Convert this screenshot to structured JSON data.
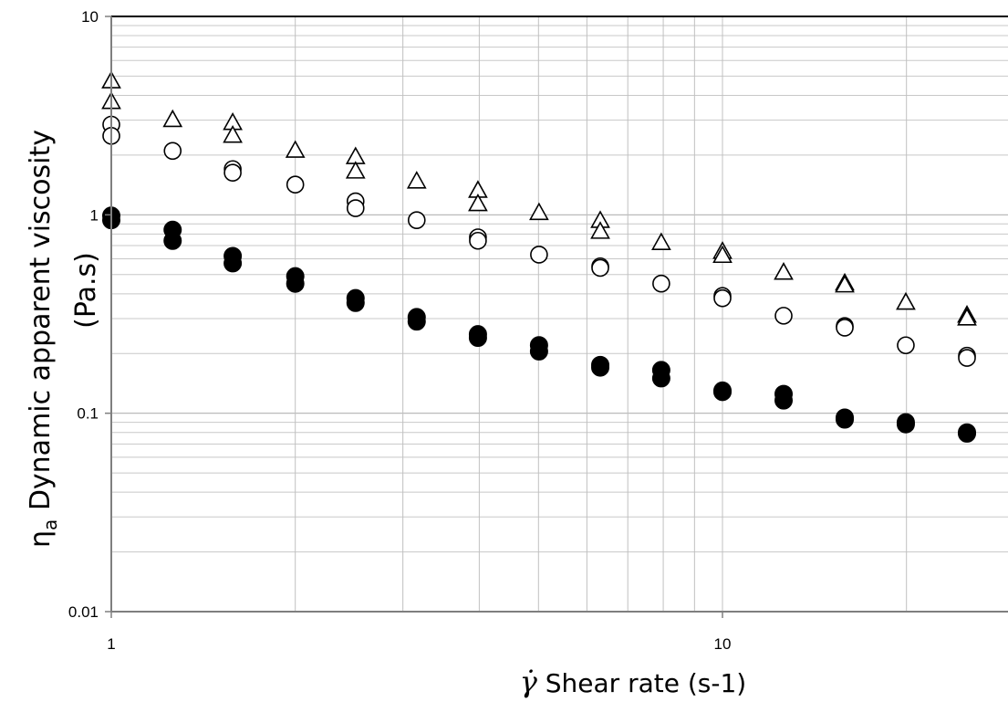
{
  "chart_data": {
    "type": "scatter",
    "xscale": "log",
    "yscale": "log",
    "xlim": [
      1,
      40
    ],
    "ylim": [
      0.01,
      10
    ],
    "grid": true,
    "x_tick_labels": [
      "1",
      "10"
    ],
    "y_tick_labels": [
      "0.01",
      "0.1",
      "1",
      "10"
    ],
    "ylabel_symbol": "η",
    "ylabel_subscript": "a",
    "ylabel_line1": " Dynamic apparent viscosity",
    "ylabel_line2": "(Pa.s)",
    "xlabel_symbol": "γ̇",
    "xlabel": " Shear rate (s-1)",
    "series": [
      {
        "marker": "open-triangle",
        "x": [
          1,
          1,
          1.26,
          1.58,
          1.58,
          2,
          2.51,
          2.51,
          3.16,
          3.98,
          3.98,
          5.01,
          6.31,
          6.31,
          7.94,
          10,
          10,
          12.59,
          15.85,
          15.85,
          19.95,
          25.12,
          25.12
        ],
        "y": [
          4.7,
          3.7,
          3.0,
          2.9,
          2.5,
          2.1,
          1.95,
          1.65,
          1.47,
          1.32,
          1.13,
          1.02,
          0.93,
          0.82,
          0.72,
          0.65,
          0.62,
          0.51,
          0.45,
          0.44,
          0.36,
          0.31,
          0.3
        ]
      },
      {
        "marker": "open-circle",
        "x": [
          1,
          1,
          1.26,
          1.58,
          1.58,
          2,
          2.51,
          2.51,
          3.16,
          3.98,
          3.98,
          5.01,
          6.31,
          6.31,
          7.94,
          10,
          10,
          12.59,
          15.85,
          15.85,
          19.95,
          25.12,
          25.12
        ],
        "y": [
          2.85,
          2.5,
          2.1,
          1.7,
          1.63,
          1.42,
          1.17,
          1.08,
          0.94,
          0.77,
          0.74,
          0.63,
          0.55,
          0.54,
          0.45,
          0.39,
          0.38,
          0.31,
          0.275,
          0.27,
          0.22,
          0.195,
          0.19
        ]
      },
      {
        "marker": "filled-circle",
        "x": [
          1,
          1,
          1.26,
          1.26,
          1.58,
          1.58,
          2,
          2,
          2.51,
          2.51,
          3.16,
          3.16,
          3.98,
          3.98,
          5.01,
          5.01,
          6.31,
          6.31,
          7.94,
          7.94,
          10,
          10,
          12.59,
          12.59,
          15.85,
          15.85,
          19.95,
          19.95,
          25.12,
          25.12
        ],
        "y": [
          0.99,
          0.94,
          0.84,
          0.74,
          0.62,
          0.57,
          0.49,
          0.45,
          0.38,
          0.36,
          0.305,
          0.29,
          0.25,
          0.24,
          0.22,
          0.205,
          0.175,
          0.17,
          0.165,
          0.15,
          0.13,
          0.128,
          0.125,
          0.116,
          0.095,
          0.093,
          0.09,
          0.088,
          0.08,
          0.079
        ]
      }
    ]
  }
}
